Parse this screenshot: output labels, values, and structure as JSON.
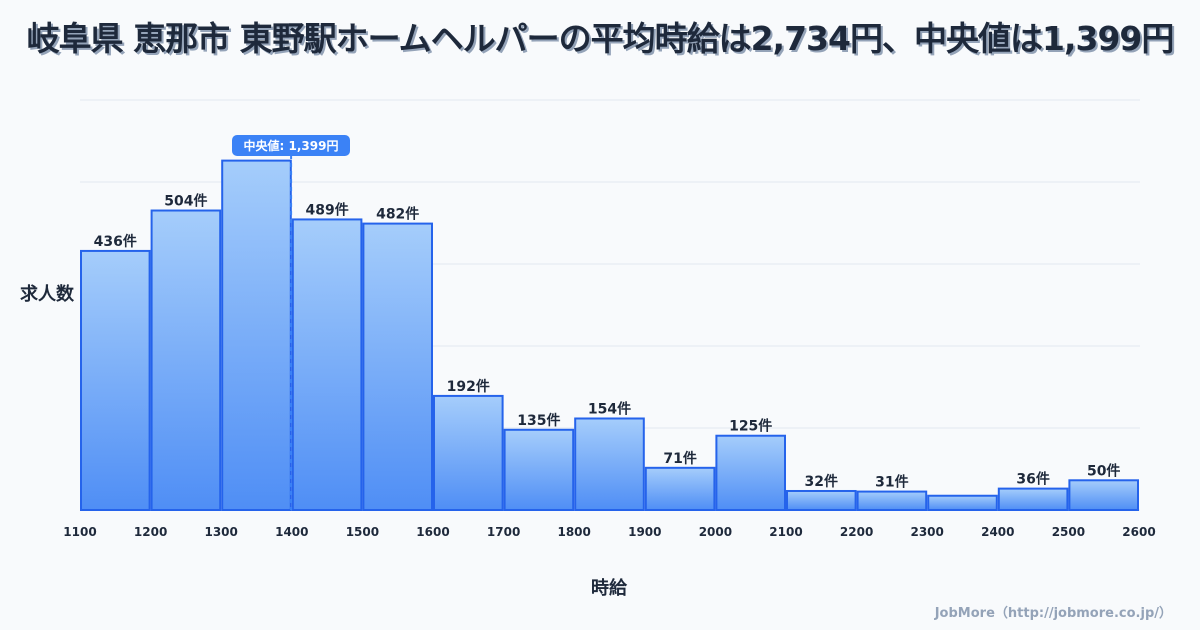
{
  "title": "岐阜県 恵那市 東野駅ホームヘルパーの平均時給は2,734円、中央値は1,399円",
  "credit": "JobMore（http://jobmore.co.jp/）",
  "chart_data": {
    "type": "bar",
    "title": "岐阜県 恵那市 東野駅ホームヘルパーの平均時給は2,734円、中央値は1,399円",
    "xlabel": "時給",
    "ylabel": "求人数",
    "bin_edges": [
      1100,
      1200,
      1300,
      1400,
      1500,
      1600,
      1700,
      1800,
      1900,
      2000,
      2100,
      2200,
      2300,
      2400,
      2500,
      2600
    ],
    "values": [
      436,
      504,
      588,
      489,
      482,
      192,
      135,
      154,
      71,
      125,
      32,
      31,
      24,
      36,
      50
    ],
    "labels": [
      "436件",
      "504件",
      "",
      "489件",
      "482件",
      "192件",
      "135件",
      "154件",
      "71件",
      "125件",
      "32件",
      "31件",
      "",
      "36件",
      "50件"
    ],
    "ylim": [
      0,
      690
    ],
    "grid": true,
    "median": 1399,
    "median_label": "中央値: 1,399円",
    "colors": {
      "bar_top": "#a5cdfb",
      "bar_bottom": "#4f8ef5",
      "stroke": "#2563eb",
      "median": "#3b82f6"
    }
  }
}
